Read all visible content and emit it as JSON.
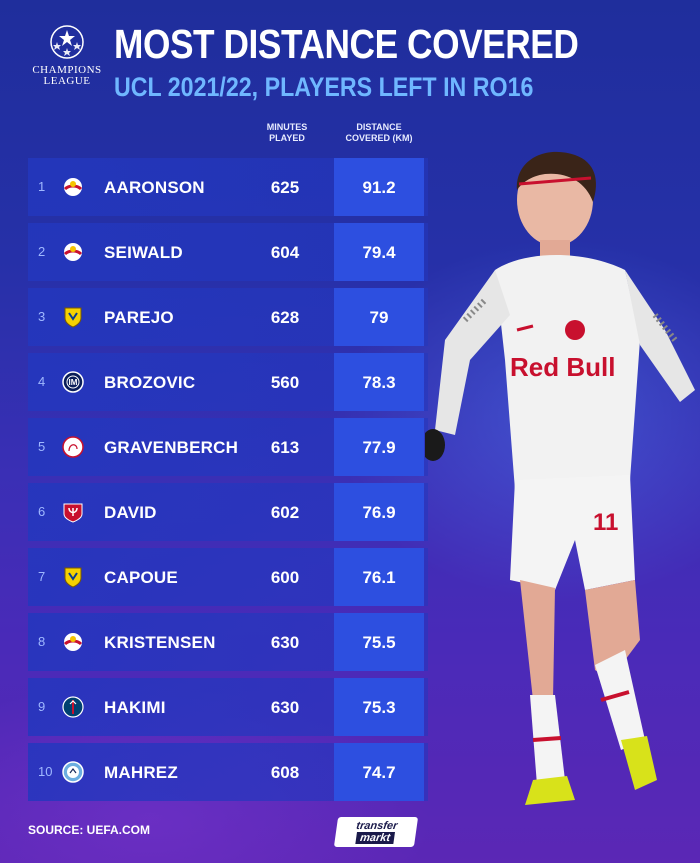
{
  "header": {
    "title": "MOST DISTANCE COVERED",
    "subtitle": "UCL 2021/22, PLAYERS LEFT IN RO16",
    "logo_top": "UEFA",
    "logo_line1": "CHAMPIONS",
    "logo_line2": "LEAGUE"
  },
  "columns": {
    "minutes": "MINUTES PLAYED",
    "distance": "DISTANCE COVERED (KM)"
  },
  "footer": {
    "source": "SOURCE: UEFA.COM",
    "brand_line1": "transfer",
    "brand_line2": "markt"
  },
  "colors": {
    "accent": "#6fb7ff",
    "row_bg": "#2337be",
    "distance_bg": "#2d4fe0"
  },
  "chart_data": {
    "type": "table",
    "title": "MOST DISTANCE COVERED",
    "subtitle": "UCL 2021/22, PLAYERS LEFT IN RO16",
    "columns": [
      "",
      "",
      "MINUTES PLAYED",
      "DISTANCE COVERED (KM)"
    ],
    "rows": [
      {
        "rank": "1",
        "club_icon": "salzburg-icon",
        "player": "AARONSON",
        "minutes": 625,
        "distance": "91.2"
      },
      {
        "rank": "2",
        "club_icon": "salzburg-icon",
        "player": "SEIWALD",
        "minutes": 604,
        "distance": "79.4"
      },
      {
        "rank": "3",
        "club_icon": "villarreal-icon",
        "player": "PAREJO",
        "minutes": 628,
        "distance": "79"
      },
      {
        "rank": "4",
        "club_icon": "inter-icon",
        "player": "BROZOVIC",
        "minutes": 560,
        "distance": "78.3"
      },
      {
        "rank": "5",
        "club_icon": "ajax-icon",
        "player": "GRAVENBERCH",
        "minutes": 613,
        "distance": "77.9"
      },
      {
        "rank": "6",
        "club_icon": "lille-icon",
        "player": "DAVID",
        "minutes": 602,
        "distance": "76.9"
      },
      {
        "rank": "7",
        "club_icon": "villarreal-icon",
        "player": "CAPOUE",
        "minutes": 600,
        "distance": "76.1"
      },
      {
        "rank": "8",
        "club_icon": "salzburg-icon",
        "player": "KRISTENSEN",
        "minutes": 630,
        "distance": "75.5"
      },
      {
        "rank": "9",
        "club_icon": "psg-icon",
        "player": "HAKIMI",
        "minutes": 630,
        "distance": "75.3"
      },
      {
        "rank": "10",
        "club_icon": "mancity-icon",
        "player": "MAHREZ",
        "minutes": 608,
        "distance": "74.7"
      }
    ]
  }
}
